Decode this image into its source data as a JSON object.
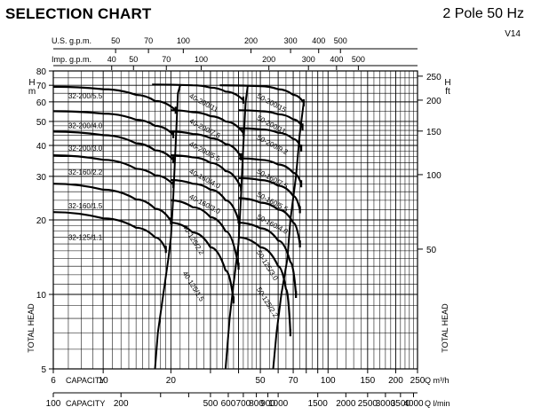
{
  "header": {
    "title": "SELECTION CHART",
    "subtitle": "2 Pole 50 Hz",
    "code": "V14"
  },
  "chart_data": {
    "type": "line",
    "title": "SELECTION CHART",
    "subtitle": "2 Pole 50 Hz",
    "x": {
      "label": "Q m³/h",
      "scale": "log",
      "range": [
        6,
        250
      ],
      "ticks": [
        6,
        10,
        20,
        30,
        40,
        50,
        60,
        70,
        80,
        90,
        100,
        150,
        200,
        250
      ],
      "tick_labels": [
        "6",
        "10",
        "20",
        "",
        "",
        "50",
        "",
        "70",
        "",
        "",
        "100",
        "150",
        "200",
        "250"
      ],
      "prefix_label": "CAPACITY",
      "grid": [
        6,
        7,
        8,
        9,
        10,
        11,
        12,
        13,
        14,
        15,
        16,
        17,
        18,
        19,
        20,
        22,
        24,
        26,
        28,
        30,
        32,
        34,
        36,
        38,
        40,
        42,
        44,
        46,
        48,
        50,
        55,
        60,
        65,
        70,
        75,
        80,
        85,
        90,
        95,
        100,
        110,
        120,
        130,
        140,
        150,
        160,
        170,
        180,
        190,
        200,
        210,
        220,
        230,
        240,
        250
      ]
    },
    "x_secondary": {
      "label": "Q l/min",
      "prefix_label": "CAPACITY",
      "factor": 16.6667,
      "ticks": [
        100,
        200,
        300,
        400,
        500,
        600,
        700,
        800,
        900,
        1000,
        1500,
        2000,
        2500,
        3000,
        3500,
        4000
      ],
      "tick_labels": [
        "100",
        "200",
        "",
        "",
        "500",
        "600",
        "700",
        "800",
        "900",
        "1000",
        "1500",
        "2000",
        "2500",
        "3000",
        "3500",
        "4000"
      ]
    },
    "x_us": {
      "label": "U.S. g.p.m.",
      "factor": 4.4029,
      "ticks": [
        50,
        70,
        100,
        200,
        300,
        400,
        500
      ],
      "tick_labels": [
        "50",
        "70",
        "100",
        "200",
        "300",
        "400",
        "500"
      ]
    },
    "x_imp": {
      "label": "Imp. g.p.m.",
      "factor": 3.6662,
      "ticks": [
        40,
        50,
        70,
        100,
        200,
        300,
        400,
        500
      ],
      "tick_labels": [
        "40",
        "50",
        "70",
        "100",
        "200",
        "300",
        "400",
        "500"
      ]
    },
    "y": {
      "label": "TOTAL HEAD",
      "unit": "H m",
      "scale": "log",
      "range": [
        5,
        80
      ],
      "ticks": [
        5,
        10,
        20,
        30,
        40,
        50,
        60,
        70,
        80
      ],
      "tick_labels": [
        "5",
        "10",
        "20",
        "30",
        "40",
        "50",
        "60",
        "70",
        "80"
      ],
      "grid": [
        5,
        6,
        7,
        8,
        9,
        10,
        11,
        12,
        13,
        14,
        15,
        16,
        17,
        18,
        19,
        20,
        22,
        24,
        26,
        28,
        30,
        32,
        34,
        36,
        38,
        40,
        42,
        44,
        46,
        48,
        50,
        55,
        60,
        65,
        70,
        75,
        80
      ]
    },
    "y_secondary": {
      "label": "TOTAL HEAD",
      "unit": "H ft",
      "factor": 3.2808,
      "ticks": [
        50,
        100,
        150,
        200,
        250
      ],
      "tick_labels": [
        "50",
        "100",
        "150",
        "200",
        "250"
      ]
    },
    "grid": true,
    "series": [
      {
        "name": "32-125/1.1",
        "label_at": [
          7,
          16.6
        ],
        "points": [
          [
            6,
            21.5
          ],
          [
            10,
            20.3
          ],
          [
            14,
            18.6
          ],
          [
            17,
            17.0
          ],
          [
            19,
            15.2
          ]
        ]
      },
      {
        "name": "32-160/1.5",
        "label_at": [
          7,
          22.3
        ],
        "points": [
          [
            6,
            28.0
          ],
          [
            10,
            26.5
          ],
          [
            14,
            24.2
          ],
          [
            17,
            22.2
          ],
          [
            20,
            19.8
          ]
        ]
      },
      {
        "name": "32-160/2.2",
        "label_at": [
          7,
          30.5
        ],
        "points": [
          [
            6,
            36.5
          ],
          [
            10,
            35.0
          ],
          [
            14,
            32.2
          ],
          [
            17,
            30.3
          ],
          [
            20.5,
            27.8
          ]
        ]
      },
      {
        "name": "32-200/3.0",
        "label_at": [
          7,
          38.0
        ],
        "points": [
          [
            6,
            45.5
          ],
          [
            10,
            44.0
          ],
          [
            14,
            40.8
          ],
          [
            17,
            38.2
          ],
          [
            20.5,
            35.0
          ]
        ]
      },
      {
        "name": "32-200/4.0",
        "label_at": [
          7,
          47.0
        ],
        "points": [
          [
            6,
            55.0
          ],
          [
            10,
            53.8
          ],
          [
            14,
            50.8
          ],
          [
            17,
            48.0
          ],
          [
            20.5,
            44.2
          ]
        ]
      },
      {
        "name": "32-200/5.5",
        "label_at": [
          7,
          62.0
        ],
        "points": [
          [
            6,
            69.0
          ],
          [
            10,
            67.5
          ],
          [
            14,
            64.0
          ],
          [
            17,
            60.5
          ],
          [
            21,
            55.5
          ]
        ]
      },
      {
        "name": "40-125/1.5",
        "label_at": [
          22.5,
          12.2
        ],
        "points": [
          [
            20,
            19.5
          ],
          [
            25,
            17.8
          ],
          [
            30,
            15.5
          ],
          [
            35,
            12.5
          ],
          [
            38,
            9.5
          ]
        ]
      },
      {
        "name": "40-125/2.2",
        "label_at": [
          22.5,
          18.8
        ],
        "points": [
          [
            20,
            24.0
          ],
          [
            25,
            22.5
          ],
          [
            30,
            20.5
          ],
          [
            35,
            18.0
          ],
          [
            40,
            13.0
          ]
        ]
      },
      {
        "name": "40-160/3.0",
        "label_at": [
          24,
          24.5
        ],
        "points": [
          [
            20,
            29.0
          ],
          [
            25,
            28.0
          ],
          [
            30,
            26.5
          ],
          [
            35,
            24.0
          ],
          [
            40,
            20.0
          ]
        ]
      },
      {
        "name": "40-160/4.0",
        "label_at": [
          24,
          31.0
        ],
        "points": [
          [
            20,
            36.5
          ],
          [
            25,
            35.8
          ],
          [
            30,
            34.0
          ],
          [
            35,
            31.5
          ],
          [
            41,
            27.0
          ]
        ]
      },
      {
        "name": "40-200/5.5",
        "label_at": [
          24,
          40.0
        ],
        "points": [
          [
            20,
            45.5
          ],
          [
            25,
            44.5
          ],
          [
            30,
            42.8
          ],
          [
            35,
            40.5
          ],
          [
            41,
            36.0
          ]
        ]
      },
      {
        "name": "40-200/7.5",
        "label_at": [
          24,
          49.5
        ],
        "points": [
          [
            20,
            55.5
          ],
          [
            25,
            54.5
          ],
          [
            30,
            52.5
          ],
          [
            35,
            50.0
          ],
          [
            42,
            45.0
          ]
        ]
      },
      {
        "name": "40-200/11",
        "label_at": [
          24,
          62.5
        ],
        "points": [
          [
            16.5,
            70.5
          ],
          [
            25,
            70.0
          ],
          [
            30,
            68.5
          ],
          [
            35,
            66.0
          ],
          [
            42,
            61.0
          ]
        ]
      },
      {
        "name": "50-125/2.2",
        "label_at": [
          48,
          10.5
        ],
        "points": [
          [
            40,
            17.0
          ],
          [
            50,
            15.5
          ],
          [
            60,
            13.0
          ],
          [
            65,
            10.5
          ],
          [
            68,
            7.0
          ]
        ]
      },
      {
        "name": "50-125/3.0",
        "label_at": [
          48,
          14.8
        ],
        "points": [
          [
            40,
            19.5
          ],
          [
            50,
            18.5
          ],
          [
            60,
            16.5
          ],
          [
            68,
            13.5
          ],
          [
            72,
            10.0
          ]
        ]
      },
      {
        "name": "50-160/4.0",
        "label_at": [
          48,
          20.3
        ],
        "points": [
          [
            40,
            24.5
          ],
          [
            50,
            23.5
          ],
          [
            60,
            22.0
          ],
          [
            70,
            19.5
          ],
          [
            75,
            16.0
          ]
        ]
      },
      {
        "name": "50-160/5.5",
        "label_at": [
          48,
          25.0
        ],
        "points": [
          [
            40,
            29.5
          ],
          [
            50,
            29.0
          ],
          [
            60,
            27.5
          ],
          [
            70,
            25.0
          ],
          [
            75,
            22.0
          ]
        ]
      },
      {
        "name": "50-160/7.5",
        "label_at": [
          48,
          31.0
        ],
        "points": [
          [
            40,
            35.5
          ],
          [
            50,
            35.0
          ],
          [
            60,
            33.5
          ],
          [
            70,
            31.0
          ],
          [
            76,
            28.0
          ]
        ]
      },
      {
        "name": "50-200/9.2",
        "label_at": [
          48,
          42.5
        ],
        "points": [
          [
            40,
            47.0
          ],
          [
            50,
            46.5
          ],
          [
            60,
            45.0
          ],
          [
            70,
            42.5
          ],
          [
            76,
            39.0
          ]
        ]
      },
      {
        "name": "50-200/11",
        "label_at": [
          48,
          51.0
        ],
        "points": [
          [
            40,
            55.5
          ],
          [
            50,
            55.0
          ],
          [
            60,
            53.5
          ],
          [
            70,
            51.0
          ],
          [
            77,
            47.5
          ]
        ]
      },
      {
        "name": "50-200/15",
        "label_at": [
          48,
          62.5
        ],
        "points": [
          [
            33,
            70.0
          ],
          [
            50,
            69.5
          ],
          [
            60,
            67.5
          ],
          [
            70,
            64.0
          ],
          [
            78,
            59.5
          ]
        ]
      }
    ],
    "boundaries": [
      [
        [
          17,
          5
        ],
        [
          17.5,
          7
        ],
        [
          18.5,
          10
        ],
        [
          19.5,
          14
        ],
        [
          20,
          17
        ]
      ],
      [
        [
          20,
          17
        ],
        [
          20.5,
          25
        ],
        [
          21,
          40
        ],
        [
          21.5,
          65
        ],
        [
          22,
          70
        ]
      ],
      [
        [
          35,
          5
        ],
        [
          36.5,
          8
        ],
        [
          38,
          11
        ],
        [
          40,
          16
        ]
      ],
      [
        [
          40,
          16
        ],
        [
          41,
          25
        ],
        [
          42,
          40
        ],
        [
          43,
          60
        ],
        [
          44,
          70
        ]
      ],
      [
        [
          57,
          5
        ],
        [
          59,
          7
        ],
        [
          62,
          10
        ],
        [
          66,
          14
        ]
      ],
      [
        [
          66,
          14
        ],
        [
          68,
          20
        ],
        [
          72,
          30
        ],
        [
          75,
          45
        ],
        [
          78,
          60
        ]
      ]
    ]
  }
}
